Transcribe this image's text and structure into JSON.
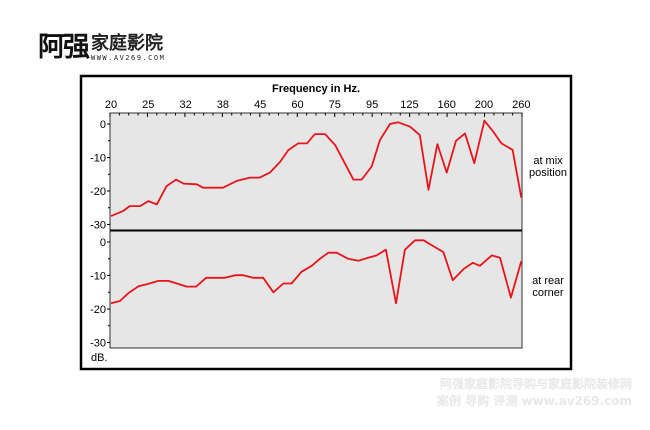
{
  "logo": {
    "big": "阿强",
    "small": "家庭影院",
    "url": "WWW.AV269.COM"
  },
  "watermark": {
    "line1": "阿强家庭影院导购与家庭影院装修网",
    "line2": "案例 导购 评测 www.av269.com"
  },
  "colors": {
    "line": "#e8141b",
    "plot_bg": "#e6e6e6",
    "frame": "#000000"
  },
  "chart_data": {
    "type": "line",
    "title": "Frequency in Hz.",
    "xlabel": "Frequency in Hz.",
    "ylabel": "dB.",
    "x_ticks": [
      "20",
      "25",
      "32",
      "38",
      "45",
      "60",
      "75",
      "95",
      "125",
      "160",
      "200",
      "260"
    ],
    "x_tick_values": [
      20,
      25,
      32,
      38,
      45,
      60,
      75,
      95,
      125,
      160,
      200,
      260
    ],
    "y_ticks": [
      "0",
      "-10",
      "-20",
      "-30"
    ],
    "ylim": [
      -30,
      3
    ],
    "panels": [
      {
        "name": "at mix position",
        "label_lines": [
          "at mix",
          "position"
        ],
        "x": [
          20,
          21.6,
          22.5,
          23.9,
          25,
          26.6,
          28.4,
          30.2,
          31.6,
          33.8,
          34.8,
          38,
          40.6,
          43.1,
          44.9,
          48.9,
          53,
          56.3,
          60.3,
          63.8,
          67,
          71.1,
          75.2,
          85,
          89.4,
          94.8,
          101.3,
          109.4,
          116,
          125.7,
          134.8,
          142.9,
          151.3,
          160,
          170,
          179.6,
          189.6,
          200.6,
          215,
          228,
          246,
          260
        ],
        "y": [
          -27.5,
          -26,
          -24.5,
          -24.5,
          -23,
          -24,
          -18.6,
          -16.6,
          -17.8,
          -18,
          -19,
          -19,
          -17,
          -16,
          -16,
          -14.5,
          -11.3,
          -7.8,
          -5.8,
          -5.8,
          -3,
          -3,
          -6.3,
          -16.6,
          -16.6,
          -12.7,
          -4.8,
          0,
          0.5,
          -0.8,
          -3.3,
          -19.6,
          -6,
          -14.5,
          -5,
          -2.8,
          -11.7,
          1,
          -2.3,
          -5.8,
          -7.7,
          -22
        ]
      },
      {
        "name": "at rear corner",
        "label_lines": [
          "at rear",
          "corner"
        ],
        "x": [
          20,
          21.2,
          22.3,
          23.7,
          24.8,
          26.9,
          28.8,
          32.2,
          33.7,
          35.3,
          38.4,
          40.3,
          41.8,
          43.7,
          46.2,
          50.3,
          54.3,
          57.6,
          61.6,
          65.7,
          69,
          72.4,
          76,
          82.2,
          87.6,
          92.2,
          98.6,
          106.1,
          114.2,
          121.4,
          130.3,
          138.3,
          147.8,
          156.9,
          166.4,
          178,
          188,
          195.6,
          212.6,
          225.8,
          243.2,
          260
        ],
        "y": [
          -18.3,
          -17.6,
          -15.3,
          -13.2,
          -12.6,
          -11.6,
          -11.6,
          -13.3,
          -13.3,
          -10.7,
          -10.7,
          -9.9,
          -9.9,
          -10.7,
          -10.7,
          -15,
          -12.4,
          -12.4,
          -8.9,
          -7.1,
          -5,
          -3.2,
          -3.2,
          -5,
          -5.6,
          -4.8,
          -4,
          -2.3,
          -18.3,
          -2.3,
          0.5,
          0.5,
          -1.3,
          -3,
          -11.4,
          -8.1,
          -6.2,
          -7.1,
          -4,
          -4.7,
          -16.6,
          -5.7
        ]
      }
    ]
  }
}
